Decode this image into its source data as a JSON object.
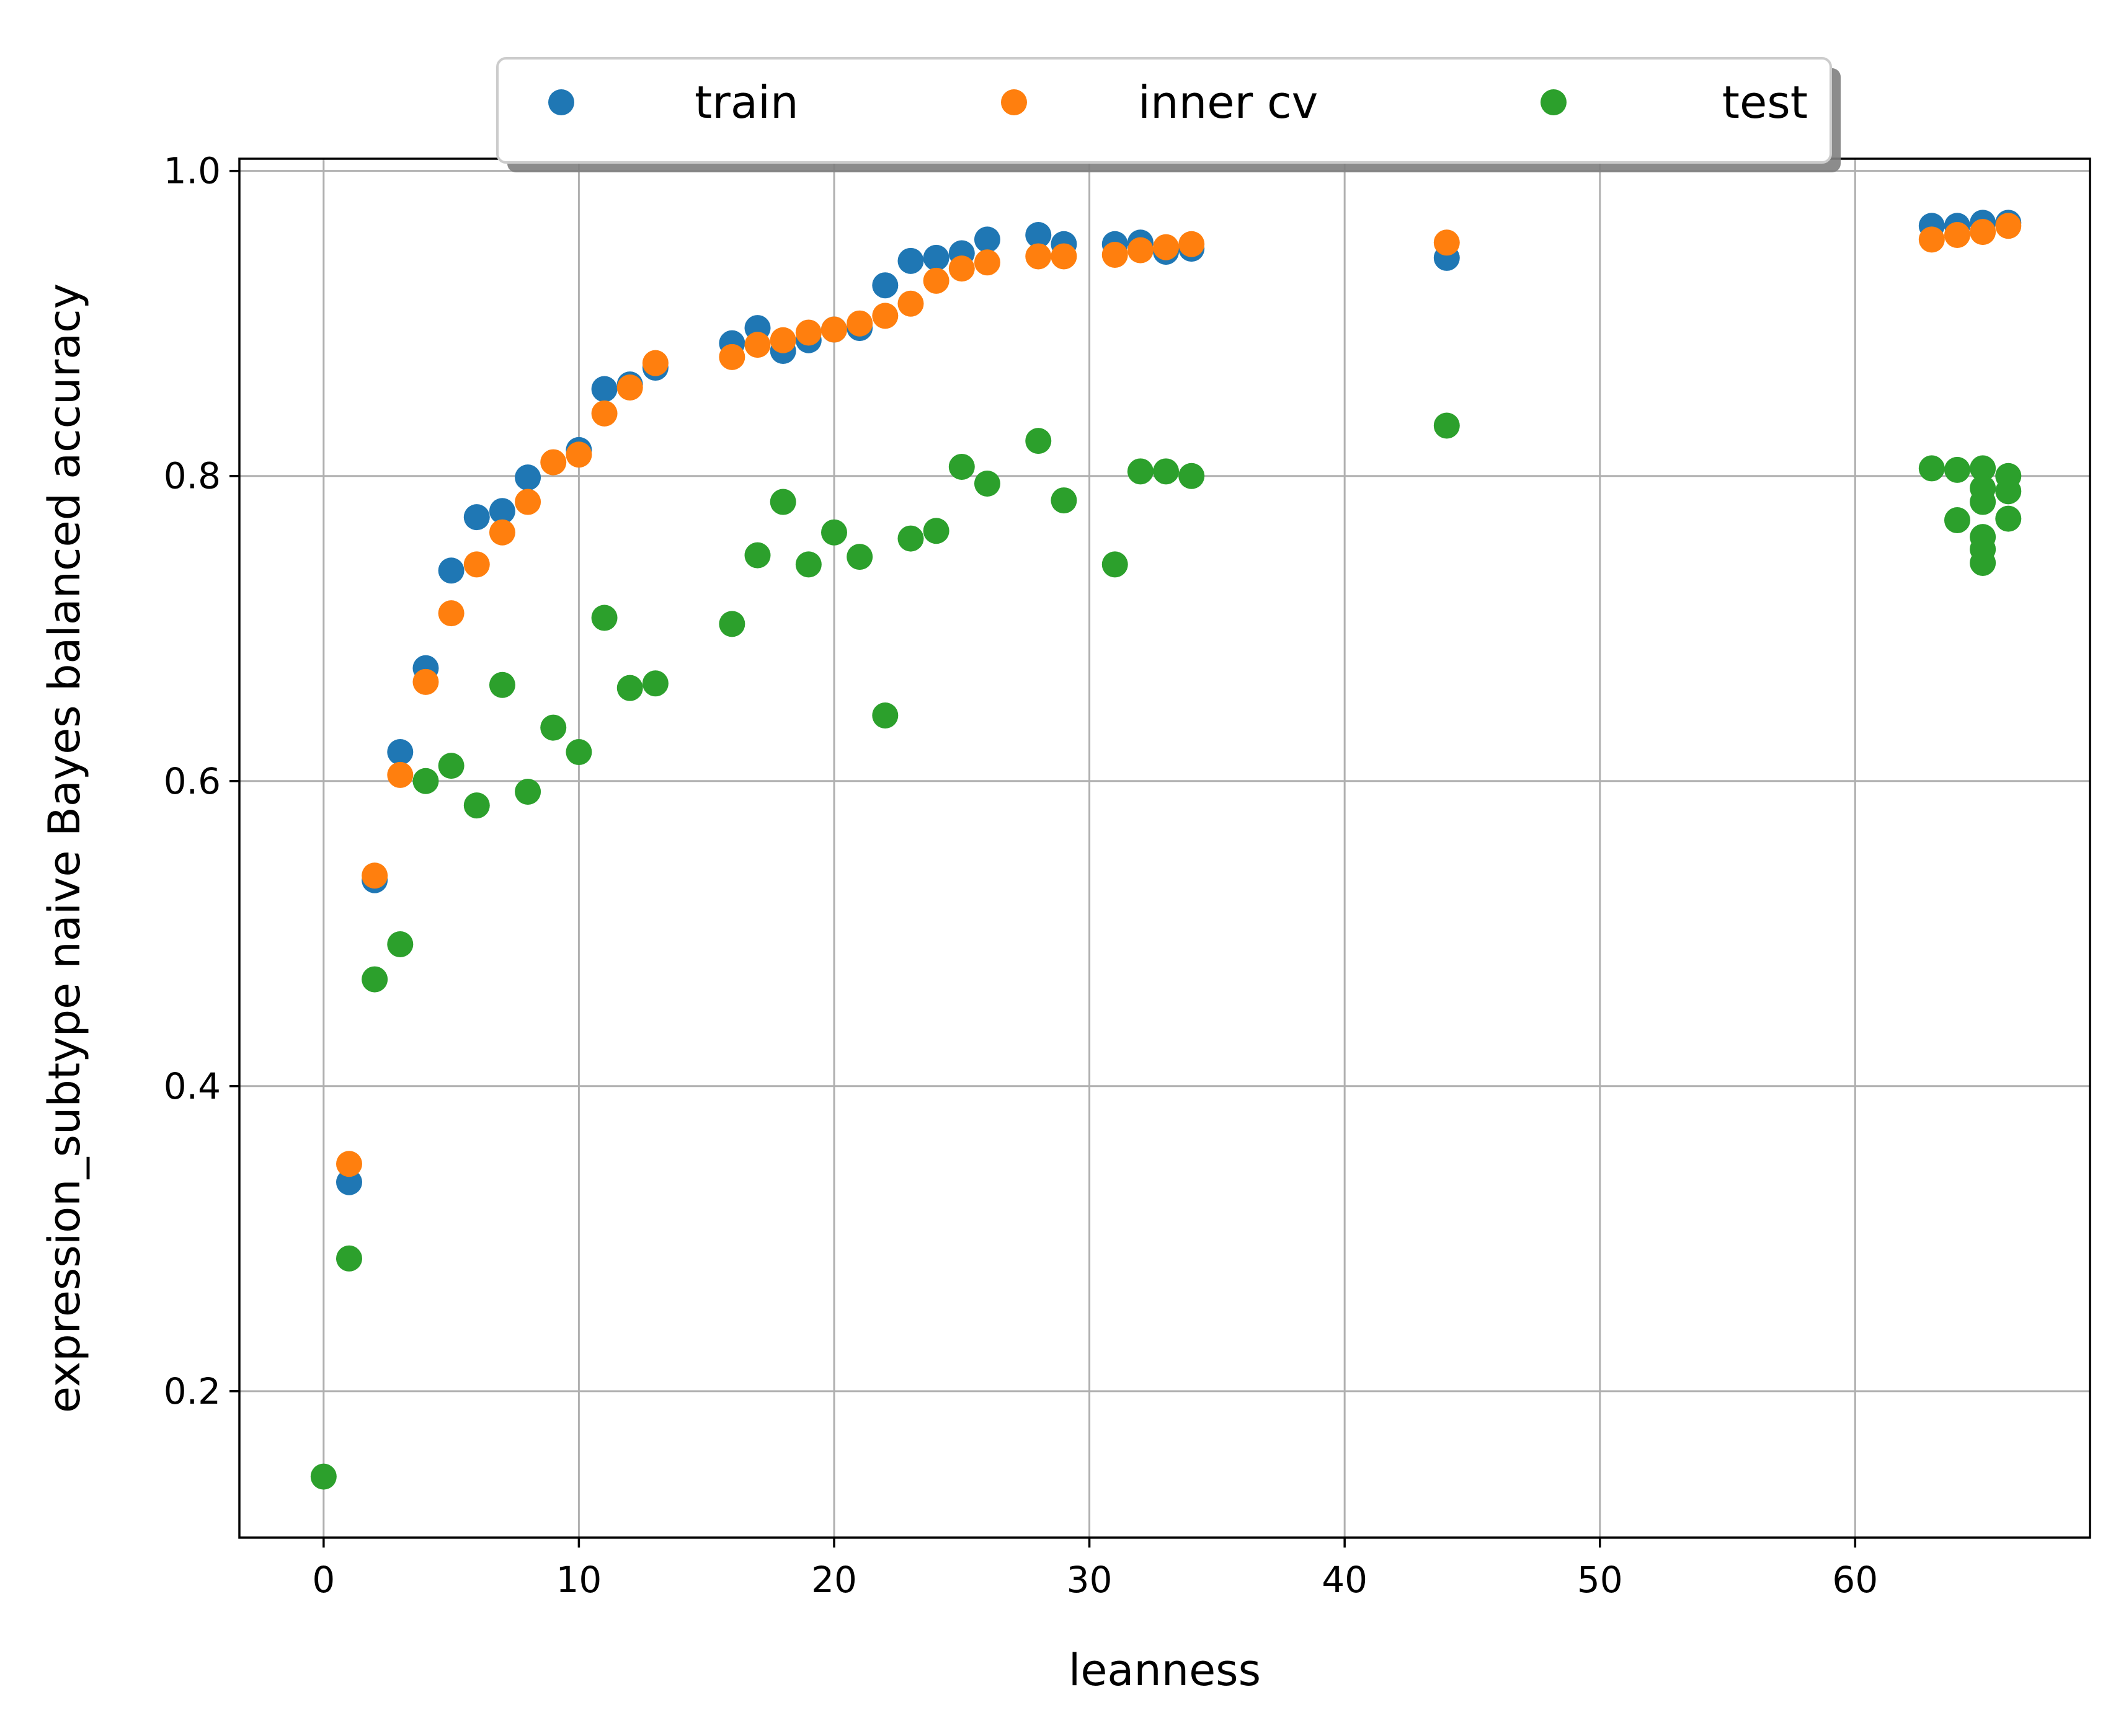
{
  "chart_data": {
    "type": "scatter",
    "title": "",
    "xlabel": "leanness",
    "ylabel": "expression_subtype naive Bayes balanced accuracy",
    "xlim": [
      -3.3,
      69.2
    ],
    "ylim": [
      0.104,
      1.008
    ],
    "xticks": [
      0,
      10,
      20,
      30,
      40,
      50,
      60
    ],
    "yticks": [
      0.2,
      0.4,
      0.6,
      0.8,
      1.0
    ],
    "xtick_labels": [
      "0",
      "10",
      "20",
      "30",
      "40",
      "50",
      "60"
    ],
    "ytick_labels": [
      "0.2",
      "0.4",
      "0.6",
      "0.8",
      "1.0"
    ],
    "grid": true,
    "legend_position": "top-center, above plot",
    "series": [
      {
        "name": "train",
        "color": "#1f77b4",
        "points": [
          [
            1,
            0.337
          ],
          [
            2,
            0.535
          ],
          [
            3,
            0.619
          ],
          [
            4,
            0.674
          ],
          [
            5,
            0.738
          ],
          [
            6,
            0.773
          ],
          [
            7,
            0.777
          ],
          [
            8,
            0.799
          ],
          [
            10,
            0.817
          ],
          [
            11,
            0.857
          ],
          [
            12,
            0.86
          ],
          [
            13,
            0.871
          ],
          [
            16,
            0.887
          ],
          [
            17,
            0.897
          ],
          [
            18,
            0.882
          ],
          [
            19,
            0.889
          ],
          [
            20,
            0.896
          ],
          [
            21,
            0.897
          ],
          [
            22,
            0.925
          ],
          [
            23,
            0.941
          ],
          [
            24,
            0.943
          ],
          [
            25,
            0.946
          ],
          [
            26,
            0.955
          ],
          [
            28,
            0.958
          ],
          [
            29,
            0.952
          ],
          [
            31,
            0.952
          ],
          [
            32,
            0.953
          ],
          [
            33,
            0.947
          ],
          [
            34,
            0.949
          ],
          [
            44,
            0.943
          ],
          [
            63,
            0.964
          ],
          [
            64,
            0.964
          ],
          [
            65,
            0.966
          ],
          [
            66,
            0.966
          ]
        ]
      },
      {
        "name": "inner cv",
        "color": "#ff7f0e",
        "points": [
          [
            1,
            0.349
          ],
          [
            2,
            0.538
          ],
          [
            3,
            0.604
          ],
          [
            4,
            0.665
          ],
          [
            5,
            0.71
          ],
          [
            6,
            0.742
          ],
          [
            7,
            0.763
          ],
          [
            8,
            0.783
          ],
          [
            9,
            0.809
          ],
          [
            10,
            0.814
          ],
          [
            11,
            0.841
          ],
          [
            12,
            0.858
          ],
          [
            13,
            0.874
          ],
          [
            16,
            0.878
          ],
          [
            17,
            0.886
          ],
          [
            18,
            0.889
          ],
          [
            19,
            0.894
          ],
          [
            20,
            0.896
          ],
          [
            21,
            0.9
          ],
          [
            22,
            0.905
          ],
          [
            23,
            0.913
          ],
          [
            24,
            0.928
          ],
          [
            25,
            0.936
          ],
          [
            26,
            0.94
          ],
          [
            28,
            0.944
          ],
          [
            29,
            0.944
          ],
          [
            31,
            0.945
          ],
          [
            32,
            0.948
          ],
          [
            33,
            0.95
          ],
          [
            34,
            0.952
          ],
          [
            44,
            0.953
          ],
          [
            63,
            0.955
          ],
          [
            64,
            0.958
          ],
          [
            65,
            0.96
          ],
          [
            66,
            0.964
          ]
        ]
      },
      {
        "name": "test",
        "color": "#2ca02c",
        "points": [
          [
            0,
            0.144
          ],
          [
            1,
            0.287
          ],
          [
            2,
            0.47
          ],
          [
            3,
            0.493
          ],
          [
            4,
            0.6
          ],
          [
            5,
            0.61
          ],
          [
            6,
            0.584
          ],
          [
            7,
            0.663
          ],
          [
            8,
            0.593
          ],
          [
            9,
            0.635
          ],
          [
            10,
            0.619
          ],
          [
            11,
            0.707
          ],
          [
            12,
            0.661
          ],
          [
            13,
            0.664
          ],
          [
            16,
            0.703
          ],
          [
            17,
            0.748
          ],
          [
            18,
            0.783
          ],
          [
            19,
            0.742
          ],
          [
            20,
            0.763
          ],
          [
            21,
            0.747
          ],
          [
            22,
            0.643
          ],
          [
            23,
            0.759
          ],
          [
            24,
            0.764
          ],
          [
            25,
            0.806
          ],
          [
            26,
            0.795
          ],
          [
            28,
            0.823
          ],
          [
            29,
            0.784
          ],
          [
            31,
            0.742
          ],
          [
            32,
            0.803
          ],
          [
            33,
            0.803
          ],
          [
            34,
            0.8
          ],
          [
            44,
            0.833
          ],
          [
            63,
            0.805
          ],
          [
            64,
            0.804
          ],
          [
            64,
            0.771
          ],
          [
            65,
            0.805
          ],
          [
            65,
            0.792
          ],
          [
            65,
            0.783
          ],
          [
            65,
            0.76
          ],
          [
            65,
            0.752
          ],
          [
            65,
            0.743
          ],
          [
            66,
            0.8
          ],
          [
            66,
            0.79
          ],
          [
            66,
            0.772
          ]
        ]
      }
    ]
  }
}
